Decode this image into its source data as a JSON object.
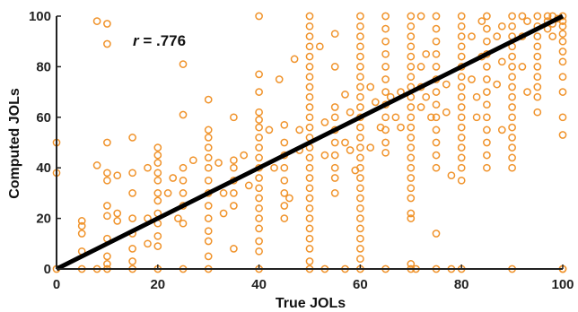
{
  "chart_data": {
    "type": "scatter",
    "xlabel": "True JOLs",
    "ylabel": "Computed JOLs",
    "xlim": [
      0,
      100
    ],
    "ylim": [
      0,
      100
    ],
    "x_ticks": [
      0,
      20,
      40,
      60,
      80,
      100
    ],
    "y_ticks": [
      0,
      20,
      40,
      60,
      80,
      100
    ],
    "annotation": {
      "r": "r",
      "value": " = .776"
    },
    "colors": {
      "points": "#F0932B",
      "fit_line": "#000000",
      "axis": "#222222"
    },
    "grid": false,
    "fit_line": {
      "x": [
        0,
        100
      ],
      "y": [
        0,
        100
      ]
    },
    "points": [
      [
        0,
        50
      ],
      [
        0,
        38
      ],
      [
        0,
        0
      ],
      [
        5,
        0
      ],
      [
        8,
        0
      ],
      [
        10,
        0
      ],
      [
        15,
        0
      ],
      [
        20,
        0
      ],
      [
        25,
        0
      ],
      [
        30,
        0
      ],
      [
        40,
        0
      ],
      [
        50,
        0
      ],
      [
        53,
        0
      ],
      [
        57,
        0
      ],
      [
        60,
        0
      ],
      [
        65,
        0
      ],
      [
        70,
        0
      ],
      [
        71,
        0
      ],
      [
        75,
        0
      ],
      [
        78,
        0
      ],
      [
        80,
        0
      ],
      [
        90,
        0
      ],
      [
        100,
        0
      ],
      [
        8,
        98
      ],
      [
        10,
        97
      ],
      [
        10,
        89
      ],
      [
        5,
        17
      ],
      [
        5,
        14
      ],
      [
        5,
        7
      ],
      [
        5,
        19
      ],
      [
        8,
        41
      ],
      [
        10,
        50
      ],
      [
        10,
        38
      ],
      [
        10,
        35
      ],
      [
        10,
        25
      ],
      [
        10,
        21
      ],
      [
        10,
        12
      ],
      [
        10,
        5
      ],
      [
        10,
        2
      ],
      [
        12,
        37
      ],
      [
        12,
        22
      ],
      [
        12,
        19
      ],
      [
        15,
        52
      ],
      [
        15,
        38
      ],
      [
        15,
        30
      ],
      [
        15,
        20
      ],
      [
        15,
        14
      ],
      [
        15,
        8
      ],
      [
        15,
        3
      ],
      [
        18,
        40
      ],
      [
        18,
        20
      ],
      [
        18,
        10
      ],
      [
        20,
        48
      ],
      [
        20,
        45
      ],
      [
        20,
        42
      ],
      [
        20,
        38
      ],
      [
        20,
        35
      ],
      [
        20,
        30
      ],
      [
        20,
        27
      ],
      [
        20,
        22
      ],
      [
        20,
        18
      ],
      [
        20,
        13
      ],
      [
        20,
        9
      ],
      [
        22,
        30
      ],
      [
        23,
        36
      ],
      [
        24,
        20
      ],
      [
        25,
        81
      ],
      [
        25,
        61
      ],
      [
        25,
        40
      ],
      [
        25,
        35
      ],
      [
        25,
        30
      ],
      [
        25,
        25
      ],
      [
        25,
        18
      ],
      [
        27,
        43
      ],
      [
        30,
        67
      ],
      [
        30,
        55
      ],
      [
        30,
        52
      ],
      [
        30,
        48
      ],
      [
        30,
        44
      ],
      [
        30,
        40
      ],
      [
        30,
        35
      ],
      [
        30,
        30
      ],
      [
        30,
        25
      ],
      [
        30,
        20
      ],
      [
        30,
        15
      ],
      [
        30,
        11
      ],
      [
        30,
        5
      ],
      [
        32,
        42
      ],
      [
        33,
        30
      ],
      [
        33,
        22
      ],
      [
        35,
        60
      ],
      [
        35,
        43
      ],
      [
        35,
        40
      ],
      [
        35,
        35
      ],
      [
        35,
        30
      ],
      [
        35,
        25
      ],
      [
        35,
        8
      ],
      [
        37,
        45
      ],
      [
        38,
        33
      ],
      [
        40,
        100
      ],
      [
        40,
        77
      ],
      [
        40,
        70
      ],
      [
        40,
        62
      ],
      [
        40,
        59
      ],
      [
        40,
        56
      ],
      [
        40,
        52
      ],
      [
        40,
        48
      ],
      [
        40,
        44
      ],
      [
        40,
        40
      ],
      [
        40,
        36
      ],
      [
        40,
        32
      ],
      [
        40,
        28
      ],
      [
        40,
        24
      ],
      [
        40,
        20
      ],
      [
        40,
        16
      ],
      [
        40,
        11
      ],
      [
        40,
        7
      ],
      [
        42,
        55
      ],
      [
        43,
        40
      ],
      [
        44,
        75
      ],
      [
        45,
        57
      ],
      [
        45,
        50
      ],
      [
        45,
        45
      ],
      [
        45,
        40
      ],
      [
        45,
        35
      ],
      [
        45,
        30
      ],
      [
        45,
        25
      ],
      [
        45,
        20
      ],
      [
        46,
        28
      ],
      [
        47,
        83
      ],
      [
        48,
        55
      ],
      [
        48,
        47
      ],
      [
        50,
        100
      ],
      [
        50,
        96
      ],
      [
        50,
        92
      ],
      [
        50,
        88
      ],
      [
        50,
        84
      ],
      [
        50,
        80
      ],
      [
        50,
        76
      ],
      [
        50,
        72
      ],
      [
        50,
        68
      ],
      [
        50,
        64
      ],
      [
        50,
        60
      ],
      [
        50,
        56
      ],
      [
        50,
        52
      ],
      [
        50,
        48
      ],
      [
        50,
        44
      ],
      [
        50,
        40
      ],
      [
        50,
        36
      ],
      [
        50,
        32
      ],
      [
        50,
        28
      ],
      [
        50,
        24
      ],
      [
        50,
        20
      ],
      [
        50,
        16
      ],
      [
        50,
        12
      ],
      [
        50,
        8
      ],
      [
        50,
        3
      ],
      [
        52,
        88
      ],
      [
        53,
        58
      ],
      [
        53,
        45
      ],
      [
        55,
        93
      ],
      [
        55,
        80
      ],
      [
        55,
        64
      ],
      [
        55,
        60
      ],
      [
        55,
        55
      ],
      [
        55,
        50
      ],
      [
        55,
        45
      ],
      [
        55,
        40
      ],
      [
        55,
        36
      ],
      [
        55,
        30
      ],
      [
        57,
        69
      ],
      [
        57,
        50
      ],
      [
        58,
        62
      ],
      [
        58,
        47
      ],
      [
        59,
        39
      ],
      [
        60,
        100
      ],
      [
        60,
        96
      ],
      [
        60,
        92
      ],
      [
        60,
        88
      ],
      [
        60,
        84
      ],
      [
        60,
        80
      ],
      [
        60,
        76
      ],
      [
        60,
        72
      ],
      [
        60,
        68
      ],
      [
        60,
        64
      ],
      [
        60,
        60
      ],
      [
        60,
        56
      ],
      [
        60,
        52
      ],
      [
        60,
        48
      ],
      [
        60,
        44
      ],
      [
        60,
        40
      ],
      [
        60,
        36
      ],
      [
        60,
        32
      ],
      [
        60,
        28
      ],
      [
        60,
        24
      ],
      [
        60,
        20
      ],
      [
        60,
        16
      ],
      [
        60,
        12
      ],
      [
        60,
        8
      ],
      [
        60,
        4
      ],
      [
        62,
        72
      ],
      [
        62,
        48
      ],
      [
        63,
        66
      ],
      [
        64,
        56
      ],
      [
        65,
        100
      ],
      [
        65,
        95
      ],
      [
        65,
        90
      ],
      [
        65,
        85
      ],
      [
        65,
        80
      ],
      [
        65,
        75
      ],
      [
        65,
        70
      ],
      [
        65,
        65
      ],
      [
        65,
        60
      ],
      [
        65,
        55
      ],
      [
        65,
        50
      ],
      [
        65,
        46
      ],
      [
        66,
        68
      ],
      [
        67,
        60
      ],
      [
        68,
        70
      ],
      [
        68,
        56
      ],
      [
        70,
        100
      ],
      [
        70,
        96
      ],
      [
        70,
        92
      ],
      [
        70,
        88
      ],
      [
        70,
        84
      ],
      [
        70,
        80
      ],
      [
        70,
        76
      ],
      [
        70,
        72
      ],
      [
        70,
        68
      ],
      [
        70,
        64
      ],
      [
        70,
        60
      ],
      [
        70,
        56
      ],
      [
        70,
        52
      ],
      [
        70,
        48
      ],
      [
        70,
        44
      ],
      [
        70,
        40
      ],
      [
        70,
        36
      ],
      [
        70,
        32
      ],
      [
        70,
        28
      ],
      [
        70,
        22
      ],
      [
        70,
        20
      ],
      [
        70,
        2
      ],
      [
        72,
        100
      ],
      [
        72,
        80
      ],
      [
        72,
        72
      ],
      [
        72,
        64
      ],
      [
        73,
        85
      ],
      [
        73,
        68
      ],
      [
        74,
        60
      ],
      [
        75,
        100
      ],
      [
        75,
        95
      ],
      [
        75,
        90
      ],
      [
        75,
        85
      ],
      [
        75,
        80
      ],
      [
        75,
        75
      ],
      [
        75,
        70
      ],
      [
        75,
        65
      ],
      [
        75,
        60
      ],
      [
        75,
        55
      ],
      [
        75,
        50
      ],
      [
        75,
        45
      ],
      [
        75,
        40
      ],
      [
        75,
        14
      ],
      [
        77,
        73
      ],
      [
        77,
        62
      ],
      [
        80,
        100
      ],
      [
        80,
        96
      ],
      [
        80,
        92
      ],
      [
        80,
        88
      ],
      [
        80,
        84
      ],
      [
        80,
        80
      ],
      [
        80,
        76
      ],
      [
        80,
        72
      ],
      [
        80,
        68
      ],
      [
        80,
        64
      ],
      [
        80,
        60
      ],
      [
        80,
        56
      ],
      [
        80,
        52
      ],
      [
        80,
        48
      ],
      [
        80,
        44
      ],
      [
        80,
        40
      ],
      [
        80,
        35
      ],
      [
        78,
        37
      ],
      [
        82,
        92
      ],
      [
        82,
        75
      ],
      [
        83,
        68
      ],
      [
        83,
        60
      ],
      [
        84,
        98
      ],
      [
        84,
        84
      ],
      [
        85,
        100
      ],
      [
        85,
        95
      ],
      [
        85,
        90
      ],
      [
        85,
        85
      ],
      [
        85,
        80
      ],
      [
        85,
        75
      ],
      [
        85,
        70
      ],
      [
        85,
        65
      ],
      [
        85,
        60
      ],
      [
        85,
        55
      ],
      [
        85,
        50
      ],
      [
        85,
        45
      ],
      [
        85,
        40
      ],
      [
        87,
        92
      ],
      [
        87,
        73
      ],
      [
        88,
        96
      ],
      [
        88,
        82
      ],
      [
        88,
        55
      ],
      [
        90,
        100
      ],
      [
        90,
        96
      ],
      [
        90,
        92
      ],
      [
        90,
        88
      ],
      [
        90,
        84
      ],
      [
        90,
        80
      ],
      [
        90,
        76
      ],
      [
        90,
        72
      ],
      [
        90,
        68
      ],
      [
        90,
        64
      ],
      [
        90,
        60
      ],
      [
        90,
        56
      ],
      [
        90,
        52
      ],
      [
        90,
        48
      ],
      [
        90,
        44
      ],
      [
        90,
        40
      ],
      [
        92,
        100
      ],
      [
        92,
        92
      ],
      [
        92,
        80
      ],
      [
        93,
        98
      ],
      [
        93,
        70
      ],
      [
        95,
        100
      ],
      [
        95,
        96
      ],
      [
        95,
        92
      ],
      [
        95,
        88
      ],
      [
        95,
        84
      ],
      [
        95,
        80
      ],
      [
        95,
        76
      ],
      [
        95,
        72
      ],
      [
        95,
        68
      ],
      [
        95,
        62
      ],
      [
        97,
        100
      ],
      [
        97,
        98
      ],
      [
        97,
        95
      ],
      [
        98,
        100
      ],
      [
        98,
        97
      ],
      [
        98,
        92
      ],
      [
        99,
        99
      ],
      [
        100,
        100
      ],
      [
        100,
        98
      ],
      [
        100,
        96
      ],
      [
        100,
        93
      ],
      [
        100,
        90
      ],
      [
        100,
        86
      ],
      [
        100,
        82
      ],
      [
        100,
        76
      ],
      [
        100,
        70
      ],
      [
        100,
        60
      ],
      [
        100,
        53
      ],
      [
        100,
        0
      ]
    ]
  }
}
